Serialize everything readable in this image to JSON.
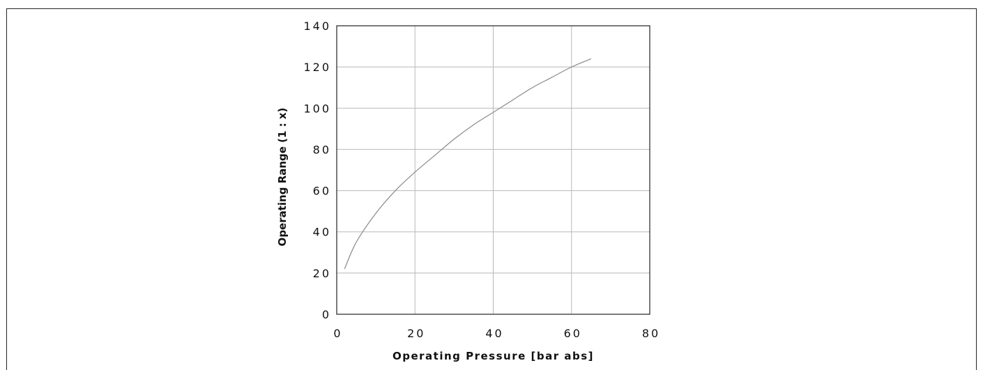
{
  "chart_data": {
    "type": "line",
    "title": "",
    "xlabel": "Operating Pressure [bar abs]",
    "ylabel": "Operating Range (1 : x)",
    "xlim": [
      0,
      80
    ],
    "ylim": [
      0,
      140
    ],
    "xticks": [
      "0",
      "20",
      "40",
      "60",
      "80"
    ],
    "yticks": [
      "0",
      "20",
      "40",
      "60",
      "80",
      "100",
      "120",
      "140"
    ],
    "grid": true,
    "series": [
      {
        "color": "#8a8a8a",
        "x": [
          2,
          5,
          10,
          15,
          20,
          25,
          30,
          35,
          40,
          45,
          50,
          55,
          60,
          65
        ],
        "y": [
          22,
          35,
          49,
          60,
          69,
          77,
          85,
          92,
          98,
          104,
          110,
          115,
          120,
          124
        ]
      }
    ]
  }
}
